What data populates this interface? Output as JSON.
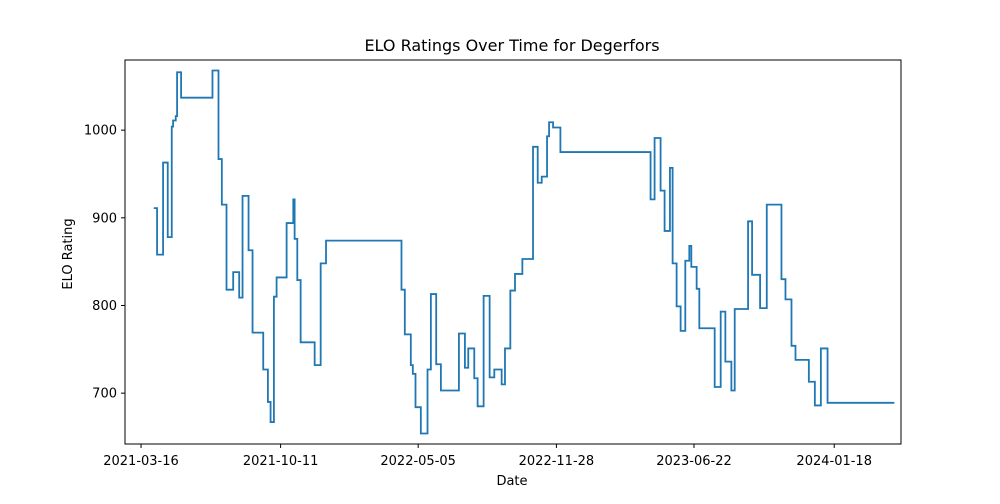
{
  "chart_data": {
    "type": "line",
    "title": "ELO Ratings Over Time for Degerfors",
    "xlabel": "Date",
    "ylabel": "ELO Rating",
    "x_ticks": [
      "2021-03-16",
      "2021-10-11",
      "2022-05-05",
      "2022-11-28",
      "2023-06-22",
      "2024-01-18"
    ],
    "y_ticks": [
      700,
      800,
      900,
      1000
    ],
    "xlim": [
      "2021-02-20",
      "2024-04-27"
    ],
    "ylim": [
      642,
      1080
    ],
    "grid": false,
    "legend": "none",
    "line_color": "#1f77b4",
    "step": true,
    "series": [
      {
        "points": [
          [
            "2021-04-04",
            911
          ],
          [
            "2021-04-09",
            858
          ],
          [
            "2021-04-18",
            963
          ],
          [
            "2021-04-25",
            878
          ],
          [
            "2021-05-01",
            1004
          ],
          [
            "2021-05-03",
            1011
          ],
          [
            "2021-05-07",
            1016
          ],
          [
            "2021-05-09",
            1066
          ],
          [
            "2021-05-15",
            1037
          ],
          [
            "2021-07-01",
            1068
          ],
          [
            "2021-07-10",
            967
          ],
          [
            "2021-07-15",
            915
          ],
          [
            "2021-07-22",
            818
          ],
          [
            "2021-08-01",
            838
          ],
          [
            "2021-08-10",
            809
          ],
          [
            "2021-08-15",
            925
          ],
          [
            "2021-08-24",
            863
          ],
          [
            "2021-08-30",
            769
          ],
          [
            "2021-09-15",
            727
          ],
          [
            "2021-09-22",
            690
          ],
          [
            "2021-09-26",
            667
          ],
          [
            "2021-10-01",
            810
          ],
          [
            "2021-10-05",
            832
          ],
          [
            "2021-10-20",
            894
          ],
          [
            "2021-10-30",
            921
          ],
          [
            "2021-11-01",
            876
          ],
          [
            "2021-11-05",
            829
          ],
          [
            "2021-11-10",
            758
          ],
          [
            "2021-12-01",
            732
          ],
          [
            "2021-12-10",
            848
          ],
          [
            "2021-12-18",
            874
          ],
          [
            "2022-04-10",
            818
          ],
          [
            "2022-04-15",
            767
          ],
          [
            "2022-04-24",
            732
          ],
          [
            "2022-04-27",
            722
          ],
          [
            "2022-05-01",
            684
          ],
          [
            "2022-05-09",
            654
          ],
          [
            "2022-05-19",
            727
          ],
          [
            "2022-05-24",
            813
          ],
          [
            "2022-06-01",
            733
          ],
          [
            "2022-06-08",
            703
          ],
          [
            "2022-07-05",
            768
          ],
          [
            "2022-07-14",
            729
          ],
          [
            "2022-07-19",
            751
          ],
          [
            "2022-07-28",
            717
          ],
          [
            "2022-08-02",
            685
          ],
          [
            "2022-08-11",
            811
          ],
          [
            "2022-08-20",
            718
          ],
          [
            "2022-08-27",
            727
          ],
          [
            "2022-09-07",
            710
          ],
          [
            "2022-09-12",
            751
          ],
          [
            "2022-09-20",
            817
          ],
          [
            "2022-09-27",
            836
          ],
          [
            "2022-10-08",
            853
          ],
          [
            "2022-10-24",
            981
          ],
          [
            "2022-10-31",
            940
          ],
          [
            "2022-11-06",
            947
          ],
          [
            "2022-11-14",
            993
          ],
          [
            "2022-11-17",
            1009
          ],
          [
            "2022-11-23",
            1003
          ],
          [
            "2022-12-04",
            975
          ],
          [
            "2023-04-18",
            921
          ],
          [
            "2023-04-24",
            991
          ],
          [
            "2023-05-03",
            931
          ],
          [
            "2023-05-09",
            885
          ],
          [
            "2023-05-17",
            957
          ],
          [
            "2023-05-21",
            848
          ],
          [
            "2023-05-27",
            799
          ],
          [
            "2023-06-02",
            771
          ],
          [
            "2023-06-09",
            851
          ],
          [
            "2023-06-15",
            868
          ],
          [
            "2023-06-18",
            844
          ],
          [
            "2023-06-26",
            819
          ],
          [
            "2023-06-30",
            774
          ],
          [
            "2023-07-23",
            707
          ],
          [
            "2023-08-01",
            793
          ],
          [
            "2023-08-08",
            736
          ],
          [
            "2023-08-17",
            703
          ],
          [
            "2023-08-22",
            796
          ],
          [
            "2023-09-11",
            896
          ],
          [
            "2023-09-17",
            835
          ],
          [
            "2023-09-29",
            797
          ],
          [
            "2023-10-09",
            915
          ],
          [
            "2023-10-31",
            830
          ],
          [
            "2023-11-06",
            807
          ],
          [
            "2023-11-15",
            754
          ],
          [
            "2023-11-21",
            738
          ],
          [
            "2023-12-11",
            713
          ],
          [
            "2023-12-20",
            686
          ],
          [
            "2023-12-29",
            751
          ],
          [
            "2024-01-08",
            689
          ],
          [
            "2024-04-17",
            689
          ]
        ]
      }
    ]
  }
}
